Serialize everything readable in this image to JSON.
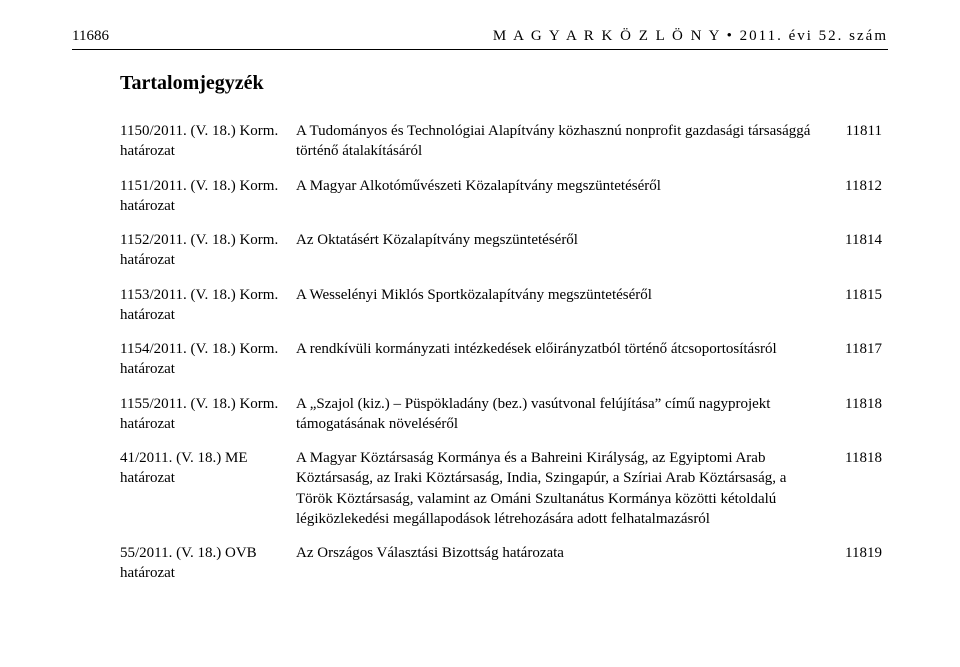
{
  "header": {
    "page_number": "11686",
    "gazette": "M A G Y A R   K Ö Z L Ö N Y",
    "issue_separator": " • ",
    "issue": "2011. évi 52. szám"
  },
  "heading": "Tartalomjegyzék",
  "entries": [
    {
      "ref": "1150/2011. (V. 18.) Korm. határozat",
      "desc": "A Tudományos és Technológiai Alapítvány közhasznú nonprofit gazdasági társasággá történő átalakításáról",
      "page": "11811"
    },
    {
      "ref": "1151/2011. (V. 18.) Korm. határozat",
      "desc": "A Magyar Alkotóművészeti Közalapítvány megszüntetéséről",
      "page": "11812"
    },
    {
      "ref": "1152/2011. (V. 18.) Korm. határozat",
      "desc": "Az Oktatásért Közalapítvány megszüntetéséről",
      "page": "11814"
    },
    {
      "ref": "1153/2011. (V. 18.) Korm. határozat",
      "desc": "A Wesselényi Miklós Sportközalapítvány megszüntetéséről",
      "page": "11815"
    },
    {
      "ref": "1154/2011. (V. 18.) Korm. határozat",
      "desc": "A rendkívüli kormányzati intézkedések előirányzatból történő átcsoportosításról",
      "page": "11817"
    },
    {
      "ref": "1155/2011. (V. 18.) Korm. határozat",
      "desc": "A „Szajol (kiz.) – Püspökladány (bez.) vasútvonal felújítása” című nagyprojekt támogatásának növeléséről",
      "page": "11818"
    },
    {
      "ref": "41/2011. (V. 18.) ME határozat",
      "desc": "A Magyar Köztársaság Kormánya és a Bahreini Királyság, az Egyiptomi Arab Köztársaság, az Iraki Köztársaság, India, Szingapúr, a Szíriai Arab Köztársaság, a Török Köztársaság, valamint az Ománi Szultanátus Kormánya közötti kétoldalú légiközlekedési megállapodások létrehozására adott felhatalmazásról",
      "page": "11818"
    },
    {
      "ref": "55/2011. (V. 18.) OVB határozat",
      "desc": "Az Országos Választási Bizottság határozata",
      "page": "11819"
    }
  ]
}
